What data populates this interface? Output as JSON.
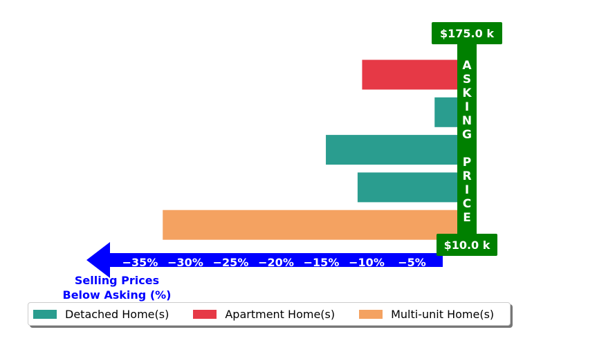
{
  "chart_data": {
    "type": "bar",
    "orientation": "horizontal",
    "xlabel": "Selling Prices\nBelow Asking (%)",
    "xlim": [
      -38,
      0
    ],
    "xticks": [
      -35,
      -30,
      -25,
      -20,
      -15,
      -10,
      -5
    ],
    "xtick_labels": [
      "−35%",
      "−30%",
      "−25%",
      "−20%",
      "−15%",
      "−10%",
      "−5%"
    ],
    "bars": [
      {
        "value": -10.5,
        "category": "Apartment Home(s)"
      },
      {
        "value": -2.5,
        "category": "Detached Home(s)"
      },
      {
        "value": -14.5,
        "category": "Detached Home(s)"
      },
      {
        "value": -11,
        "category": "Detached Home(s)"
      },
      {
        "value": -32.5,
        "category": "Multi-unit Home(s)"
      }
    ],
    "asking_price_label": "ASKING PRICE",
    "asking_price_top": "$175.0 k",
    "asking_price_bottom": "$10.0 k",
    "legend": {
      "position": "bottom",
      "entries": [
        {
          "label": "Detached Home(s)",
          "color": "#2a9d8f"
        },
        {
          "label": "Apartment Home(s)",
          "color": "#e63946"
        },
        {
          "label": "Multi-unit Home(s)",
          "color": "#f4a261"
        }
      ]
    },
    "colors": {
      "Detached Home(s)": "#2a9d8f",
      "Apartment Home(s)": "#e63946",
      "Multi-unit Home(s)": "#f4a261",
      "axis_arrow": "#0000ff",
      "asking_bar": "#008000"
    }
  }
}
